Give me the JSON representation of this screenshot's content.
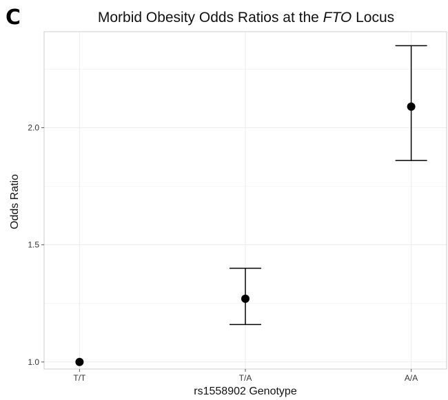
{
  "panel_label": "C",
  "chart_data": {
    "type": "scatter",
    "title_main": "Morbid Obesity Odds Ratios at the ",
    "title_italic": "FTO",
    "title_end": " Locus",
    "xlabel": "rs1558902 Genotype",
    "ylabel": "Odds Ratio",
    "categories": [
      "T/T",
      "T/A",
      "A/A"
    ],
    "values": [
      1.0,
      1.27,
      2.09
    ],
    "ci_low": [
      null,
      1.16,
      1.86
    ],
    "ci_high": [
      null,
      1.4,
      2.35
    ],
    "yticks": [
      1.0,
      1.5,
      2.0
    ],
    "ytick_labels": [
      "1.0",
      "1.5",
      "2.0"
    ],
    "ylim": [
      0.97,
      2.41
    ],
    "grid": true,
    "colors": {
      "point": "#000000",
      "errorbar": "#000000",
      "grid": "#ebebeb",
      "border": "#cccccc"
    }
  }
}
